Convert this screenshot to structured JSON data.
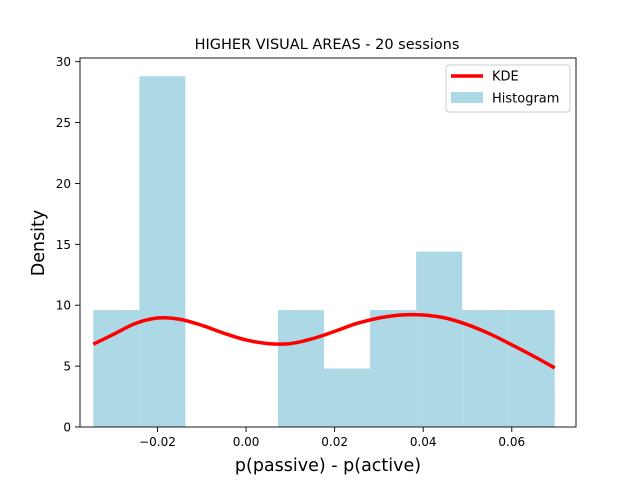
{
  "chart_data": {
    "type": "bar",
    "title": "HIGHER VISUAL AREAS - 20 sessions",
    "xlabel": "p(passive) - p(active)",
    "ylabel": "Density",
    "xlim": [
      -0.0375,
      0.0745
    ],
    "ylim": [
      0,
      30.3
    ],
    "xticks": [
      -0.02,
      0.0,
      0.02,
      0.04,
      0.06
    ],
    "xtick_labels": [
      "−0.02",
      "0.00",
      "0.02",
      "0.04",
      "0.06"
    ],
    "yticks": [
      0,
      5,
      10,
      15,
      20,
      25,
      30
    ],
    "ytick_labels": [
      "0",
      "5",
      "10",
      "15",
      "20",
      "25",
      "30"
    ],
    "grid": false,
    "legend_position": "top-right",
    "histogram": {
      "name": "Histogram",
      "color": "#add8e6",
      "bin_edges": [
        -0.0345,
        -0.0241,
        -0.0137,
        -0.0032,
        0.0072,
        0.0176,
        0.028,
        0.0384,
        0.0488,
        0.0592,
        0.0697
      ],
      "values": [
        9.6,
        28.8,
        0,
        0,
        9.6,
        4.8,
        9.6,
        14.4,
        9.6,
        9.6
      ]
    },
    "kde": {
      "name": "KDE",
      "color": "#ff0000",
      "x": [
        -0.0345,
        -0.03,
        -0.025,
        -0.02,
        -0.015,
        -0.01,
        -0.005,
        0.0,
        0.005,
        0.01,
        0.015,
        0.02,
        0.025,
        0.03,
        0.035,
        0.04,
        0.045,
        0.05,
        0.055,
        0.06,
        0.065,
        0.0697
      ],
      "y": [
        6.8,
        7.6,
        8.5,
        8.95,
        8.85,
        8.35,
        7.7,
        7.15,
        6.85,
        6.85,
        7.25,
        7.85,
        8.5,
        8.95,
        9.2,
        9.2,
        8.95,
        8.4,
        7.65,
        6.75,
        5.8,
        4.85
      ]
    }
  }
}
